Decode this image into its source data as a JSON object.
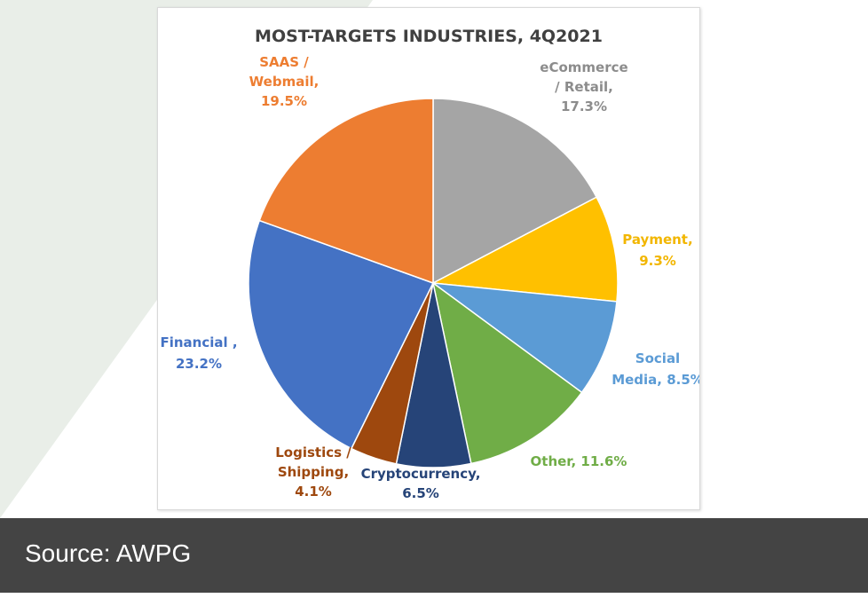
{
  "caption": {
    "text": "Source: AWPG"
  },
  "chart_data": {
    "type": "pie",
    "title": "MOST-TARGETS INDUSTRIES, 4Q2021",
    "slices": [
      {
        "label": "eCommerce / Retail",
        "lines": [
          "eCommerce",
          "/ Retail,",
          "17.3%"
        ],
        "value": 17.3,
        "color": "#a5a5a5"
      },
      {
        "label": "Payment",
        "lines": [
          "Payment,",
          "9.3%"
        ],
        "value": 9.3,
        "color": "#ffc000"
      },
      {
        "label": "Social Media",
        "lines": [
          "Social",
          "Media, 8.5%"
        ],
        "value": 8.5,
        "color": "#5b9bd5"
      },
      {
        "label": "Other",
        "lines": [
          "Other, 11.6%"
        ],
        "value": 11.6,
        "color": "#70ad47"
      },
      {
        "label": "Cryptocurrency",
        "lines": [
          "Cryptocurrency,",
          "6.5%"
        ],
        "value": 6.5,
        "color": "#264478"
      },
      {
        "label": "Logistics / Shipping",
        "lines": [
          "Logistics /",
          "Shipping,",
          "4.1%"
        ],
        "value": 4.1,
        "color": "#9e480e"
      },
      {
        "label": "Financial",
        "lines": [
          "Financial ,",
          "23.2%"
        ],
        "value": 23.2,
        "color": "#4472c4"
      },
      {
        "label": "SAAS / Webmail",
        "lines": [
          "SAAS /",
          "Webmail,",
          "19.5%"
        ],
        "value": 19.5,
        "color": "#ed7d31"
      }
    ]
  }
}
